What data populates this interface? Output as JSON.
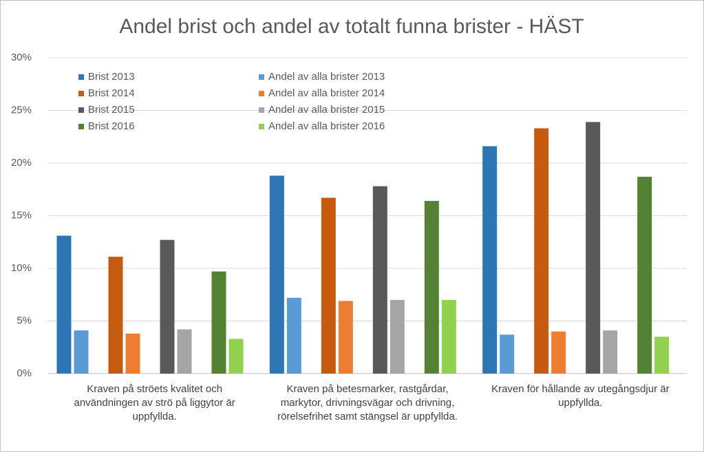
{
  "chart_data": {
    "type": "bar",
    "title": "Andel brist och andel av totalt funna brister - HÄST",
    "categories": [
      "Kraven på ströets kvalitet och användningen av strö på liggytor är uppfyllda.",
      "Kraven på betesmarker, rastgårdar, markytor, drivningsvägar och drivning, rörelsefrihet samt stängsel är uppfyllda.",
      "Kraven för hållande av utegångsdjur är uppfyllda."
    ],
    "series": [
      {
        "name": "Brist 2013",
        "color": "#2e75b6",
        "values": [
          13.1,
          18.8,
          21.6
        ]
      },
      {
        "name": "Andel av alla brister 2013",
        "color": "#5b9bd5",
        "values": [
          4.1,
          7.2,
          3.7
        ]
      },
      {
        "name": "Brist 2014",
        "color": "#c55a11",
        "values": [
          11.1,
          16.7,
          23.3
        ]
      },
      {
        "name": "Andel av alla brister 2014",
        "color": "#ed7d31",
        "values": [
          3.8,
          6.9,
          4.0
        ]
      },
      {
        "name": "Brist 2015",
        "color": "#595959",
        "values": [
          12.7,
          17.8,
          23.9
        ]
      },
      {
        "name": "Andel av alla brister 2015",
        "color": "#a5a5a5",
        "values": [
          4.2,
          7.0,
          4.1
        ]
      },
      {
        "name": "Brist 2016",
        "color": "#548235",
        "values": [
          9.7,
          16.4,
          18.7
        ]
      },
      {
        "name": "Andel av alla brister 2016",
        "color": "#92d050",
        "values": [
          3.3,
          7.0,
          3.5
        ]
      }
    ],
    "ylim": [
      0,
      30
    ],
    "yticks": [
      {
        "value": 0,
        "label": "0%"
      },
      {
        "value": 5,
        "label": "5%"
      },
      {
        "value": 10,
        "label": "10%"
      },
      {
        "value": 15,
        "label": "15%"
      },
      {
        "value": 20,
        "label": "20%"
      },
      {
        "value": 25,
        "label": "25%"
      },
      {
        "value": 30,
        "label": "30%"
      }
    ],
    "grid": true
  }
}
